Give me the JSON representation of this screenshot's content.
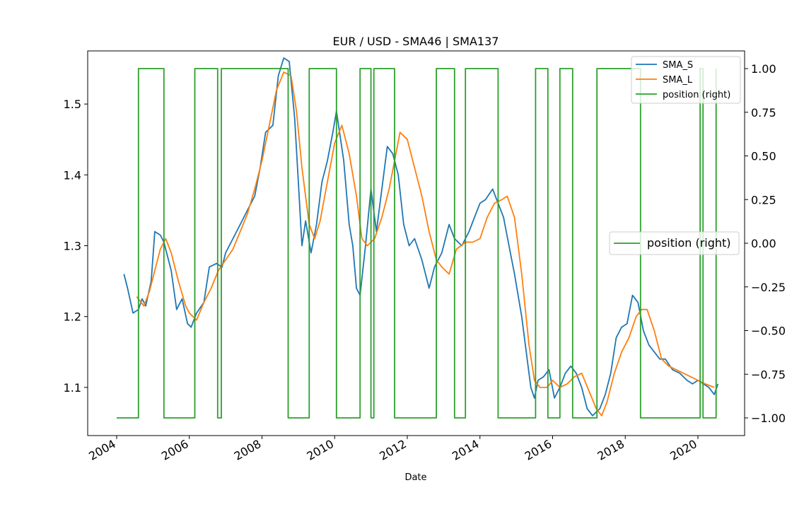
{
  "chart_data": {
    "type": "line",
    "title": "EUR / USD - SMA46 | SMA137",
    "xlabel": "Date",
    "ylabel": "",
    "ylim": [
      1.032,
      1.575
    ],
    "y2lim": [
      -1.1,
      1.1
    ],
    "grid": false,
    "x_ticks": [
      "2004",
      "2006",
      "2008",
      "2010",
      "2012",
      "2014",
      "2016",
      "2018",
      "2020"
    ],
    "y_ticks": [
      "1.1",
      "1.2",
      "1.3",
      "1.4",
      "1.5"
    ],
    "y2_ticks": [
      "1.00",
      "0.75",
      "0.50",
      "0.25",
      "0.00",
      "−0.25",
      "−0.50",
      "−0.75",
      "−1.00"
    ],
    "legend_placement": "upper right",
    "legend2_placement": "center right",
    "series": [
      {
        "name": "SMA_S",
        "color": "#1f77b4",
        "axis": "left",
        "x": [
          2004.2,
          2004.3,
          2004.45,
          2004.6,
          2004.7,
          2004.8,
          2004.95,
          2005.05,
          2005.2,
          2005.3,
          2005.5,
          2005.65,
          2005.8,
          2005.95,
          2006.05,
          2006.2,
          2006.4,
          2006.55,
          2006.75,
          2006.9,
          2007.0,
          2007.2,
          2007.4,
          2007.6,
          2007.8,
          2007.95,
          2008.1,
          2008.3,
          2008.45,
          2008.6,
          2008.75,
          2008.9,
          2009.0,
          2009.1,
          2009.2,
          2009.35,
          2009.5,
          2009.65,
          2009.8,
          2009.95,
          2010.05,
          2010.25,
          2010.4,
          2010.5,
          2010.6,
          2010.7,
          2010.85,
          2011.0,
          2011.15,
          2011.3,
          2011.45,
          2011.6,
          2011.75,
          2011.9,
          2012.05,
          2012.2,
          2012.4,
          2012.6,
          2012.75,
          2012.95,
          2013.15,
          2013.3,
          2013.5,
          2013.7,
          2013.85,
          2014.0,
          2014.15,
          2014.35,
          2014.5,
          2014.65,
          2014.8,
          2014.95,
          2015.15,
          2015.3,
          2015.4,
          2015.5,
          2015.6,
          2015.75,
          2015.9,
          2016.05,
          2016.2,
          2016.35,
          2016.5,
          2016.65,
          2016.8,
          2016.95,
          2017.1,
          2017.3,
          2017.45,
          2017.6,
          2017.75,
          2017.9,
          2018.05,
          2018.2,
          2018.35,
          2018.5,
          2018.65,
          2018.8,
          2018.95,
          2019.1,
          2019.3,
          2019.5,
          2019.7,
          2019.85,
          2020.0,
          2020.15,
          2020.3,
          2020.45,
          2020.55
        ],
        "values": [
          1.26,
          1.24,
          1.205,
          1.21,
          1.225,
          1.215,
          1.25,
          1.32,
          1.315,
          1.305,
          1.265,
          1.21,
          1.225,
          1.19,
          1.185,
          1.205,
          1.22,
          1.27,
          1.275,
          1.27,
          1.29,
          1.31,
          1.33,
          1.35,
          1.37,
          1.41,
          1.46,
          1.47,
          1.54,
          1.565,
          1.56,
          1.48,
          1.39,
          1.3,
          1.335,
          1.29,
          1.33,
          1.39,
          1.42,
          1.46,
          1.49,
          1.42,
          1.33,
          1.3,
          1.24,
          1.23,
          1.3,
          1.38,
          1.32,
          1.38,
          1.44,
          1.43,
          1.4,
          1.33,
          1.3,
          1.31,
          1.28,
          1.24,
          1.27,
          1.29,
          1.33,
          1.31,
          1.3,
          1.32,
          1.34,
          1.36,
          1.365,
          1.38,
          1.36,
          1.34,
          1.3,
          1.26,
          1.2,
          1.14,
          1.1,
          1.085,
          1.11,
          1.115,
          1.125,
          1.085,
          1.1,
          1.12,
          1.13,
          1.12,
          1.1,
          1.07,
          1.06,
          1.07,
          1.09,
          1.12,
          1.17,
          1.185,
          1.19,
          1.23,
          1.22,
          1.18,
          1.16,
          1.15,
          1.14,
          1.14,
          1.125,
          1.12,
          1.11,
          1.105,
          1.11,
          1.105,
          1.1,
          1.09,
          1.105
        ]
      },
      {
        "name": "SMA_L",
        "color": "#ff7f0e",
        "axis": "left",
        "x": [
          2004.55,
          2004.75,
          2004.9,
          2005.05,
          2005.2,
          2005.35,
          2005.5,
          2005.7,
          2005.9,
          2006.0,
          2006.2,
          2006.4,
          2006.6,
          2006.8,
          2007.0,
          2007.2,
          2007.4,
          2007.6,
          2007.8,
          2008.0,
          2008.2,
          2008.4,
          2008.6,
          2008.8,
          2008.95,
          2009.1,
          2009.3,
          2009.45,
          2009.6,
          2009.8,
          2010.0,
          2010.2,
          2010.4,
          2010.6,
          2010.75,
          2010.9,
          2011.1,
          2011.3,
          2011.5,
          2011.65,
          2011.8,
          2012.0,
          2012.2,
          2012.4,
          2012.6,
          2012.8,
          2012.95,
          2013.15,
          2013.35,
          2013.6,
          2013.8,
          2014.0,
          2014.2,
          2014.4,
          2014.6,
          2014.75,
          2014.95,
          2015.15,
          2015.35,
          2015.5,
          2015.65,
          2015.85,
          2016.0,
          2016.2,
          2016.4,
          2016.6,
          2016.8,
          2017.0,
          2017.2,
          2017.35,
          2017.5,
          2017.7,
          2017.9,
          2018.1,
          2018.3,
          2018.45,
          2018.6,
          2018.8,
          2019.0,
          2019.2,
          2019.4,
          2019.6,
          2019.8,
          2020.0,
          2020.2,
          2020.45
        ],
        "values": [
          1.228,
          1.215,
          1.235,
          1.265,
          1.295,
          1.31,
          1.29,
          1.25,
          1.215,
          1.205,
          1.195,
          1.22,
          1.24,
          1.265,
          1.28,
          1.295,
          1.32,
          1.345,
          1.38,
          1.42,
          1.47,
          1.52,
          1.545,
          1.54,
          1.49,
          1.41,
          1.33,
          1.31,
          1.335,
          1.39,
          1.445,
          1.47,
          1.43,
          1.37,
          1.31,
          1.3,
          1.31,
          1.34,
          1.38,
          1.42,
          1.46,
          1.45,
          1.41,
          1.37,
          1.32,
          1.28,
          1.27,
          1.26,
          1.295,
          1.305,
          1.305,
          1.31,
          1.34,
          1.36,
          1.365,
          1.37,
          1.34,
          1.26,
          1.16,
          1.11,
          1.1,
          1.1,
          1.11,
          1.1,
          1.105,
          1.115,
          1.12,
          1.095,
          1.07,
          1.06,
          1.08,
          1.12,
          1.15,
          1.17,
          1.2,
          1.21,
          1.21,
          1.18,
          1.14,
          1.13,
          1.125,
          1.12,
          1.115,
          1.11,
          1.105,
          1.1
        ]
      },
      {
        "name": "position (right)",
        "color": "#2ca02c",
        "axis": "right",
        "step": true,
        "x": [
          2004.0,
          2004.6,
          2005.3,
          2006.15,
          2006.78,
          2006.88,
          2008.72,
          2009.3,
          2010.05,
          2010.7,
          2011.0,
          2011.08,
          2011.65,
          2012.8,
          2013.3,
          2013.6,
          2014.5,
          2015.53,
          2015.56,
          2015.87,
          2016.2,
          2016.55,
          2017.22,
          2018.42,
          2020.06,
          2020.14,
          2020.5
        ],
        "values": [
          -1,
          1,
          -1,
          1,
          -1,
          1,
          -1,
          1,
          -1,
          1,
          -1,
          1,
          -1,
          1,
          -1,
          1,
          -1,
          1,
          1,
          -1,
          1,
          -1,
          1,
          -1,
          1,
          -1,
          1
        ]
      }
    ]
  }
}
